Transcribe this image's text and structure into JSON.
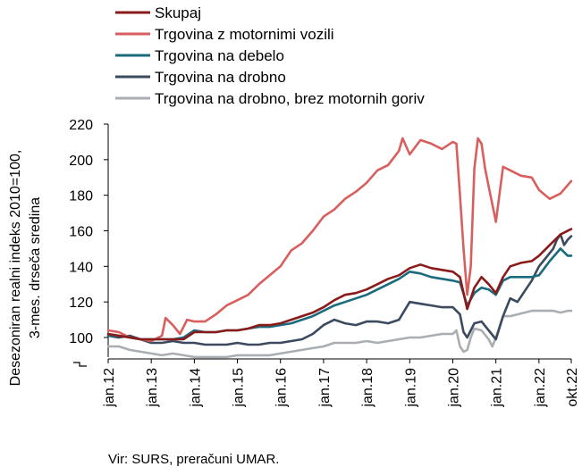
{
  "chart_data": {
    "type": "line",
    "ylabel": "Desezoniran realni indeks 2010=100,\n3-mes. drseča sredina",
    "ylim": [
      80,
      220
    ],
    "y_ticks": [
      100,
      120,
      140,
      160,
      180,
      200,
      220
    ],
    "grid": false,
    "legend_position": "top-left",
    "x_tick_labels": [
      "jan.12",
      "jan.13",
      "jan.14",
      "jan.15",
      "jan.16",
      "jan.17",
      "jan.18",
      "jan.19",
      "jan.20",
      "jan.21",
      "jan.22",
      "okt.22"
    ],
    "x_tick_months": [
      0,
      12,
      24,
      36,
      48,
      60,
      72,
      84,
      96,
      108,
      120,
      129
    ],
    "series": [
      {
        "name": "Skupaj",
        "color": "#8b1a1a",
        "points": [
          [
            0,
            102
          ],
          [
            3,
            101
          ],
          [
            6,
            100
          ],
          [
            9,
            99
          ],
          [
            12,
            99
          ],
          [
            15,
            99
          ],
          [
            18,
            99
          ],
          [
            21,
            99
          ],
          [
            24,
            103
          ],
          [
            27,
            103
          ],
          [
            30,
            103
          ],
          [
            33,
            104
          ],
          [
            36,
            104
          ],
          [
            39,
            105
          ],
          [
            42,
            107
          ],
          [
            45,
            107
          ],
          [
            48,
            108
          ],
          [
            51,
            110
          ],
          [
            54,
            112
          ],
          [
            57,
            114
          ],
          [
            60,
            117
          ],
          [
            63,
            121
          ],
          [
            66,
            124
          ],
          [
            69,
            125
          ],
          [
            72,
            127
          ],
          [
            75,
            130
          ],
          [
            78,
            133
          ],
          [
            81,
            135
          ],
          [
            84,
            139
          ],
          [
            87,
            141
          ],
          [
            90,
            139
          ],
          [
            93,
            138
          ],
          [
            96,
            137
          ],
          [
            98,
            134
          ],
          [
            100,
            116
          ],
          [
            102,
            128
          ],
          [
            104,
            134
          ],
          [
            106,
            130
          ],
          [
            108,
            125
          ],
          [
            110,
            134
          ],
          [
            112,
            140
          ],
          [
            115,
            142
          ],
          [
            118,
            143
          ],
          [
            120,
            146
          ],
          [
            123,
            152
          ],
          [
            126,
            158
          ],
          [
            129,
            161
          ]
        ]
      },
      {
        "name": "Trgovina z motornimi vozili",
        "color": "#d95f5f",
        "points": [
          [
            0,
            104
          ],
          [
            3,
            103
          ],
          [
            6,
            100
          ],
          [
            9,
            99
          ],
          [
            12,
            98
          ],
          [
            15,
            101
          ],
          [
            16,
            111
          ],
          [
            18,
            107
          ],
          [
            20,
            102
          ],
          [
            22,
            110
          ],
          [
            24,
            109
          ],
          [
            27,
            109
          ],
          [
            30,
            113
          ],
          [
            33,
            118
          ],
          [
            36,
            121
          ],
          [
            39,
            124
          ],
          [
            42,
            130
          ],
          [
            45,
            135
          ],
          [
            48,
            140
          ],
          [
            51,
            149
          ],
          [
            54,
            153
          ],
          [
            57,
            160
          ],
          [
            60,
            168
          ],
          [
            63,
            172
          ],
          [
            66,
            178
          ],
          [
            69,
            182
          ],
          [
            72,
            187
          ],
          [
            75,
            194
          ],
          [
            78,
            197
          ],
          [
            81,
            205
          ],
          [
            82,
            212
          ],
          [
            84,
            203
          ],
          [
            87,
            211
          ],
          [
            90,
            209
          ],
          [
            93,
            206
          ],
          [
            96,
            210
          ],
          [
            97,
            209
          ],
          [
            98,
            180
          ],
          [
            99,
            150
          ],
          [
            100,
            124
          ],
          [
            101,
            140
          ],
          [
            102,
            195
          ],
          [
            103,
            212
          ],
          [
            104,
            209
          ],
          [
            105,
            195
          ],
          [
            106,
            185
          ],
          [
            108,
            165
          ],
          [
            110,
            196
          ],
          [
            112,
            194
          ],
          [
            115,
            191
          ],
          [
            118,
            190
          ],
          [
            120,
            183
          ],
          [
            123,
            178
          ],
          [
            126,
            181
          ],
          [
            129,
            188
          ]
        ]
      },
      {
        "name": "Trgovina na debelo",
        "color": "#1a6b7d",
        "points": [
          [
            0,
            101
          ],
          [
            3,
            101
          ],
          [
            6,
            100
          ],
          [
            9,
            99
          ],
          [
            12,
            99
          ],
          [
            15,
            99
          ],
          [
            18,
            99
          ],
          [
            21,
            100
          ],
          [
            24,
            104
          ],
          [
            27,
            103
          ],
          [
            30,
            103
          ],
          [
            33,
            104
          ],
          [
            36,
            104
          ],
          [
            39,
            105
          ],
          [
            42,
            106
          ],
          [
            45,
            106
          ],
          [
            48,
            107
          ],
          [
            51,
            108
          ],
          [
            54,
            110
          ],
          [
            57,
            112
          ],
          [
            60,
            115
          ],
          [
            63,
            118
          ],
          [
            66,
            120
          ],
          [
            69,
            122
          ],
          [
            72,
            124
          ],
          [
            75,
            127
          ],
          [
            78,
            130
          ],
          [
            81,
            133
          ],
          [
            84,
            137
          ],
          [
            87,
            136
          ],
          [
            90,
            134
          ],
          [
            93,
            133
          ],
          [
            96,
            132
          ],
          [
            98,
            131
          ],
          [
            100,
            118
          ],
          [
            102,
            125
          ],
          [
            104,
            128
          ],
          [
            106,
            127
          ],
          [
            108,
            124
          ],
          [
            110,
            132
          ],
          [
            112,
            134
          ],
          [
            115,
            134
          ],
          [
            118,
            134
          ],
          [
            120,
            135
          ],
          [
            123,
            143
          ],
          [
            126,
            150
          ],
          [
            128,
            146
          ],
          [
            129,
            146
          ]
        ]
      },
      {
        "name": "Trgovina na drobno",
        "color": "#3b4a5e",
        "points": [
          [
            0,
            101
          ],
          [
            3,
            100
          ],
          [
            6,
            101
          ],
          [
            9,
            99
          ],
          [
            12,
            97
          ],
          [
            15,
            97
          ],
          [
            18,
            98
          ],
          [
            21,
            97
          ],
          [
            24,
            97
          ],
          [
            27,
            96
          ],
          [
            30,
            96
          ],
          [
            33,
            96
          ],
          [
            36,
            97
          ],
          [
            39,
            96
          ],
          [
            42,
            96
          ],
          [
            45,
            97
          ],
          [
            48,
            97
          ],
          [
            51,
            98
          ],
          [
            54,
            99
          ],
          [
            57,
            102
          ],
          [
            60,
            107
          ],
          [
            63,
            110
          ],
          [
            66,
            108
          ],
          [
            69,
            107
          ],
          [
            72,
            109
          ],
          [
            75,
            109
          ],
          [
            78,
            108
          ],
          [
            81,
            110
          ],
          [
            84,
            120
          ],
          [
            87,
            119
          ],
          [
            90,
            118
          ],
          [
            93,
            117
          ],
          [
            96,
            117
          ],
          [
            98,
            113
          ],
          [
            99,
            103
          ],
          [
            100,
            100
          ],
          [
            101,
            104
          ],
          [
            102,
            108
          ],
          [
            104,
            109
          ],
          [
            106,
            104
          ],
          [
            108,
            99
          ],
          [
            110,
            112
          ],
          [
            112,
            122
          ],
          [
            114,
            120
          ],
          [
            116,
            126
          ],
          [
            118,
            132
          ],
          [
            120,
            140
          ],
          [
            122,
            145
          ],
          [
            124,
            150
          ],
          [
            125,
            155
          ],
          [
            126,
            158
          ],
          [
            127,
            152
          ],
          [
            128,
            155
          ],
          [
            129,
            157
          ]
        ]
      },
      {
        "name": "Trgovina na drobno, brez motornih goriv",
        "color": "#a9aeb3",
        "points": [
          [
            0,
            95
          ],
          [
            3,
            95
          ],
          [
            6,
            93
          ],
          [
            9,
            92
          ],
          [
            12,
            91
          ],
          [
            15,
            90
          ],
          [
            18,
            91
          ],
          [
            21,
            90
          ],
          [
            24,
            89
          ],
          [
            27,
            89
          ],
          [
            30,
            89
          ],
          [
            33,
            89
          ],
          [
            36,
            90
          ],
          [
            39,
            90
          ],
          [
            42,
            90
          ],
          [
            45,
            90
          ],
          [
            48,
            91
          ],
          [
            51,
            92
          ],
          [
            54,
            93
          ],
          [
            57,
            94
          ],
          [
            60,
            95
          ],
          [
            63,
            97
          ],
          [
            66,
            97
          ],
          [
            69,
            97
          ],
          [
            72,
            98
          ],
          [
            75,
            97
          ],
          [
            78,
            98
          ],
          [
            81,
            99
          ],
          [
            84,
            100
          ],
          [
            87,
            100
          ],
          [
            90,
            101
          ],
          [
            93,
            102
          ],
          [
            96,
            102
          ],
          [
            97,
            104
          ],
          [
            98,
            95
          ],
          [
            99,
            92
          ],
          [
            100,
            93
          ],
          [
            101,
            100
          ],
          [
            102,
            105
          ],
          [
            104,
            104
          ],
          [
            106,
            99
          ],
          [
            107,
            95
          ],
          [
            108,
            100
          ],
          [
            110,
            112
          ],
          [
            112,
            112
          ],
          [
            114,
            113
          ],
          [
            116,
            114
          ],
          [
            118,
            115
          ],
          [
            120,
            115
          ],
          [
            122,
            115
          ],
          [
            124,
            115
          ],
          [
            126,
            114
          ],
          [
            128,
            115
          ],
          [
            129,
            115
          ]
        ]
      }
    ]
  },
  "source_note": "Vir: SURS, preračuni UMAR."
}
